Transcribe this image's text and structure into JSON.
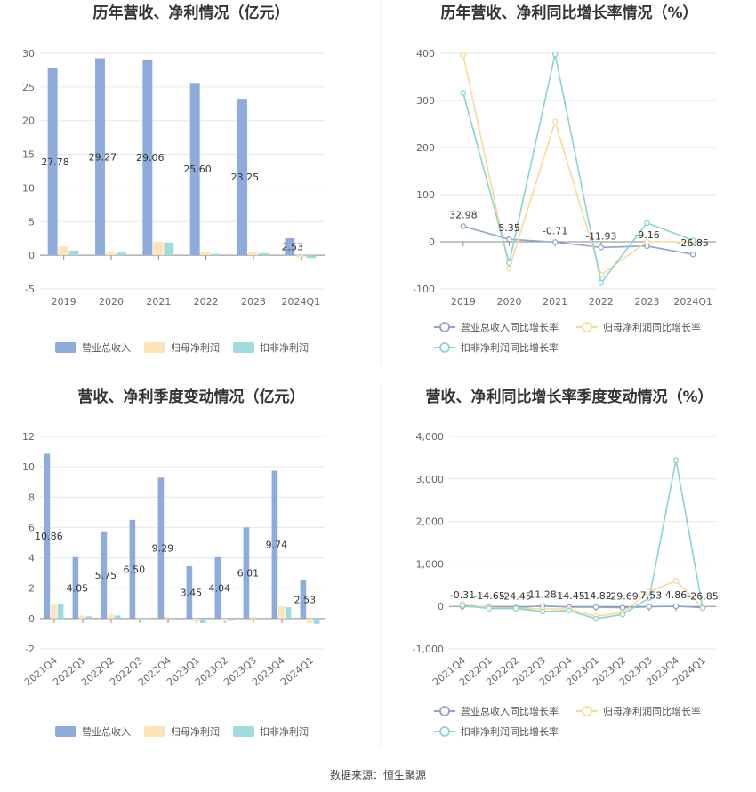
{
  "source": "数据来源：恒生聚源",
  "colors": {
    "revenue": "#8EACDB",
    "netprofit": "#FDE3B5",
    "deducted": "#9DDCDC",
    "revenue_line": "#8EA3CF",
    "netprofit_line": "#FAD995",
    "deducted_line": "#89D3D5"
  },
  "chart_data": [
    {
      "type": "bar",
      "title": "历年营收、净利情况（亿元）",
      "categories": [
        "2019",
        "2020",
        "2021",
        "2022",
        "2023",
        "2024Q1"
      ],
      "ylim": [
        -5,
        30
      ],
      "yticks": [
        -5,
        0,
        5,
        10,
        15,
        20,
        25,
        30
      ],
      "grid": true,
      "legend": "bottom",
      "series": [
        {
          "name": "营业总收入",
          "values": [
            27.78,
            29.27,
            29.06,
            25.6,
            23.25,
            2.53
          ],
          "labels": [
            "27.78",
            "29.27",
            "29.06",
            "25.60",
            "23.25",
            "2.53"
          ]
        },
        {
          "name": "归母净利润",
          "values": [
            1.3,
            0.5,
            2.0,
            0.5,
            0.5,
            -0.3
          ]
        },
        {
          "name": "扣非净利润",
          "values": [
            0.7,
            0.4,
            1.9,
            0.2,
            0.3,
            -0.4
          ]
        }
      ]
    },
    {
      "type": "line",
      "title": "历年营收、净利同比增长率情况（%）",
      "categories": [
        "2019",
        "2020",
        "2021",
        "2022",
        "2023",
        "2024Q1"
      ],
      "ylim": [
        -100,
        400
      ],
      "yticks": [
        -100,
        0,
        100,
        200,
        300,
        400
      ],
      "grid": true,
      "legend": "bottom",
      "series": [
        {
          "name": "营业总收入同比增长率",
          "values": [
            32.98,
            5.35,
            -0.71,
            -11.93,
            -9.16,
            -26.85
          ],
          "labels": [
            "32.98",
            "5.35",
            "-0.71",
            "-11.93",
            "-9.16",
            "-26.85"
          ]
        },
        {
          "name": "归母净利润同比增长率",
          "values": [
            396,
            -57,
            255,
            -70,
            0,
            0
          ]
        },
        {
          "name": "扣非净利润同比增长率",
          "values": [
            316,
            -45,
            398,
            -87,
            40,
            3
          ]
        }
      ]
    },
    {
      "type": "bar",
      "title": "营收、净利季度变动情况（亿元）",
      "categories": [
        "2021Q4",
        "2022Q1",
        "2022Q2",
        "2022Q3",
        "2022Q4",
        "2023Q1",
        "2023Q2",
        "2023Q3",
        "2023Q4",
        "2024Q1"
      ],
      "ylim": [
        -2,
        12
      ],
      "yticks": [
        -2,
        0,
        2,
        4,
        6,
        8,
        10,
        12
      ],
      "grid": true,
      "legend": "bottom",
      "series": [
        {
          "name": "营业总收入",
          "values": [
            10.86,
            4.05,
            5.75,
            6.5,
            9.29,
            3.45,
            4.04,
            6.01,
            9.74,
            2.53
          ],
          "labels": [
            "10.86",
            "4.05",
            "5.75",
            "6.50",
            "9.29",
            "3.45",
            "4.04",
            "6.01",
            "9.74",
            "2.53"
          ]
        },
        {
          "name": "归母净利润",
          "values": [
            0.9,
            0.2,
            0.3,
            0.0,
            0.1,
            -0.2,
            -0.2,
            0.1,
            0.8,
            -0.3
          ]
        },
        {
          "name": "扣非净利润",
          "values": [
            0.95,
            0.15,
            0.2,
            -0.05,
            0.05,
            -0.3,
            -0.15,
            0.05,
            0.75,
            -0.35
          ]
        }
      ]
    },
    {
      "type": "line",
      "title": "营收、净利同比增长率季度变动情况（%）",
      "categories": [
        "2021Q4",
        "2022Q1",
        "2022Q2",
        "2022Q3",
        "2022Q4",
        "2023Q1",
        "2023Q2",
        "2023Q3",
        "2023Q4",
        "2024Q1"
      ],
      "ylim": [
        -1000,
        4000
      ],
      "yticks": [
        -1000,
        0,
        1000,
        2000,
        3000,
        4000
      ],
      "ytick_labels": [
        "-1,000",
        "0",
        "1,000",
        "2,000",
        "3,000",
        "4,000"
      ],
      "grid": true,
      "legend": "bottom",
      "series": [
        {
          "name": "营业总收入同比增长率",
          "values": [
            -0.31,
            -14.65,
            -24.45,
            11.28,
            -14.45,
            -14.82,
            -29.69,
            -7.53,
            4.86,
            -26.85
          ],
          "labels": [
            "-0.31",
            "-14.65",
            "-24.45",
            "11.28",
            "-14.45",
            "-14.82",
            "-29.69",
            "-7.53",
            "4.86",
            "-26.85"
          ]
        },
        {
          "name": "归母净利润同比增长率",
          "values": [
            60,
            -30,
            -40,
            -60,
            -60,
            -230,
            -150,
            350,
            600,
            -20
          ]
        },
        {
          "name": "扣非净利润同比增长率",
          "values": [
            20,
            -50,
            -50,
            -120,
            -100,
            -290,
            -190,
            200,
            3440,
            -40
          ]
        }
      ]
    }
  ]
}
